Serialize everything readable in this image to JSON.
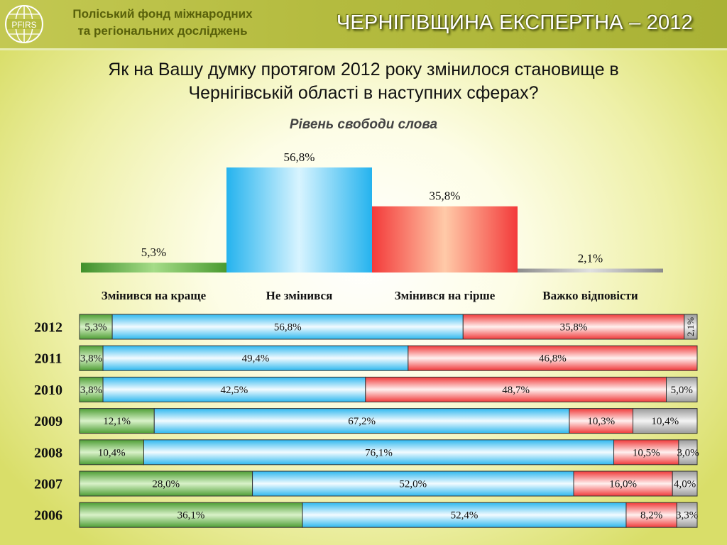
{
  "header": {
    "org_line1": "Поліський фонд міжнародних",
    "org_line2": "та регіональних досліджень",
    "logo_text": "PFIRS",
    "series_title": "ЧЕРНІГІВЩИНА ЕКСПЕРТНА – 2012"
  },
  "question": {
    "line1": "Як на Вашу думку протягом 2012 року змінилося становище в",
    "line2": "Чернігівській області в наступних сферах?"
  },
  "subtitle": "Рівень свободи слова",
  "colors": {
    "better": "#5aa83a",
    "unchanged": "#33bdf0",
    "worse": "#f03a3a",
    "hard": "#a8a8a8"
  },
  "chart_data": [
    {
      "type": "bar",
      "categories": [
        "Змінився на краще",
        "Не змінився",
        "Змінився на гірше",
        "Важко відповісти"
      ],
      "values": [
        5.3,
        56.8,
        35.8,
        2.1
      ],
      "value_labels": [
        "5,3%",
        "56,8%",
        "35,8%",
        "2,1%"
      ],
      "ylim": [
        0,
        56.8
      ]
    },
    {
      "type": "bar",
      "stacked": true,
      "orientation": "horizontal",
      "categories": [
        "2012",
        "2011",
        "2010",
        "2009",
        "2008",
        "2007",
        "2006"
      ],
      "series": [
        {
          "name": "Змінився на краще",
          "values": [
            5.3,
            3.8,
            3.8,
            12.1,
            10.4,
            28.0,
            36.1
          ],
          "labels": [
            "5,3%",
            "3,8%",
            "3,8%",
            "12,1%",
            "10,4%",
            "28,0%",
            "36,1%"
          ]
        },
        {
          "name": "Не змінився",
          "values": [
            56.8,
            49.4,
            42.5,
            67.2,
            76.1,
            52.0,
            52.4
          ],
          "labels": [
            "56,8%",
            "49,4%",
            "42,5%",
            "67,2%",
            "76,1%",
            "52,0%",
            "52,4%"
          ]
        },
        {
          "name": "Змінився на гірше",
          "values": [
            35.8,
            46.8,
            48.7,
            10.3,
            10.5,
            16.0,
            8.2
          ],
          "labels": [
            "35,8%",
            "46,8%",
            "48,7%",
            "10,3%",
            "10,5%",
            "16,0%",
            "8,2%"
          ]
        },
        {
          "name": "Важко відповісти",
          "values": [
            2.1,
            0,
            5.0,
            10.4,
            3.0,
            4.0,
            3.3
          ],
          "labels": [
            "2,1%",
            "",
            "5,0%",
            "10,4%",
            "3,0%",
            "4,0%",
            "3,3%"
          ]
        }
      ],
      "xlim": [
        0,
        100
      ]
    }
  ]
}
